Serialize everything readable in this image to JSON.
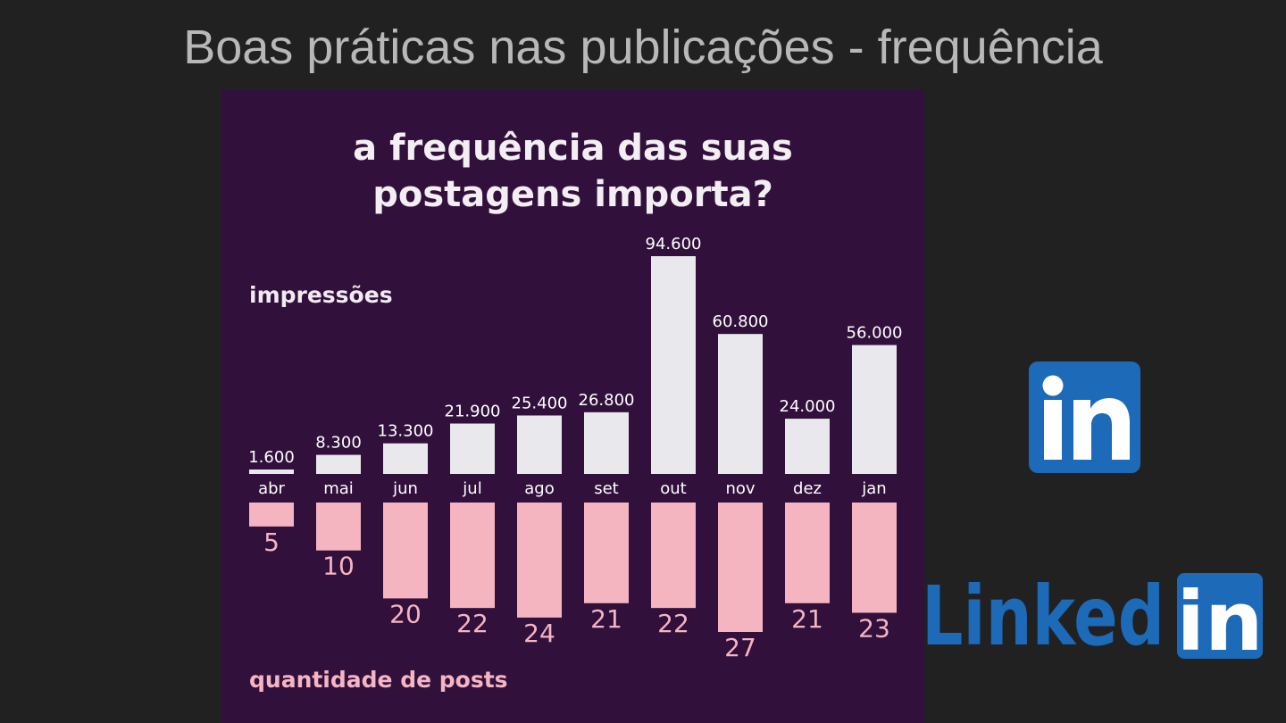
{
  "slide": {
    "title": "Boas práticas nas publicações - frequência"
  },
  "panel": {
    "title_line1": "a frequência das suas",
    "title_line2": "postagens importa?",
    "impressions_label": "impressões",
    "posts_label": "quantidade de posts",
    "background": "#32103c"
  },
  "logos": {
    "icon": "linkedin-in-icon",
    "wordmark_text": "Linked",
    "wordmark_badge": "in",
    "brand_color": "#1d6ab8"
  },
  "chart_data": {
    "type": "bar",
    "categories": [
      "abr",
      "mai",
      "jun",
      "jul",
      "ago",
      "set",
      "out",
      "nov",
      "dez",
      "jan"
    ],
    "series": [
      {
        "values": [
          1600,
          8300,
          13300,
          21900,
          25400,
          26800,
          94600,
          60800,
          24000,
          56000
        ],
        "value_labels": [
          "1.600",
          "8.300",
          "13.300",
          "21.900",
          "25.400",
          "26.800",
          "94.600",
          "60.800",
          "24.000",
          "56.000"
        ],
        "color": "#e9e8ec"
      },
      {
        "values": [
          5,
          10,
          20,
          22,
          24,
          21,
          22,
          27,
          21,
          23
        ],
        "value_labels": [
          "5",
          "10",
          "20",
          "22",
          "24",
          "21",
          "22",
          "27",
          "21",
          "23"
        ],
        "color": "#f5b5c0"
      }
    ],
    "ylim_impressions": [
      0,
      94600
    ],
    "ylim_posts": [
      0,
      27
    ],
    "grid": false,
    "legend": "none"
  }
}
